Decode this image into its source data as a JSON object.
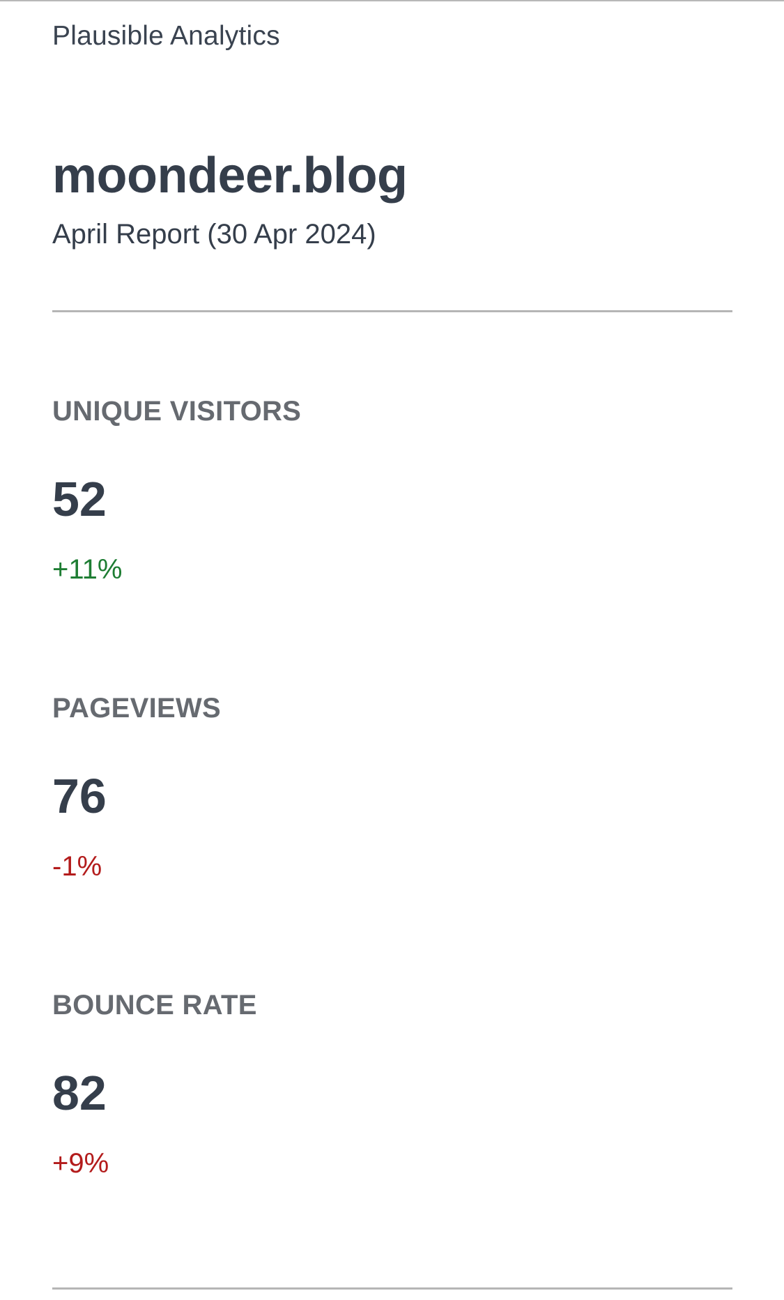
{
  "brand": "Plausible Analytics",
  "site": "moondeer.blog",
  "report": "April Report (30 Apr 2024)",
  "metrics": [
    {
      "label": "UNIQUE VISITORS",
      "value": "52",
      "change": "+11%",
      "change_color": "#1e7d33"
    },
    {
      "label": "PAGEVIEWS",
      "value": "76",
      "change": "-1%",
      "change_color": "#b31b1b"
    },
    {
      "label": "BOUNCE RATE",
      "value": "82",
      "change": "+9%",
      "change_color": "#b31b1b"
    }
  ]
}
